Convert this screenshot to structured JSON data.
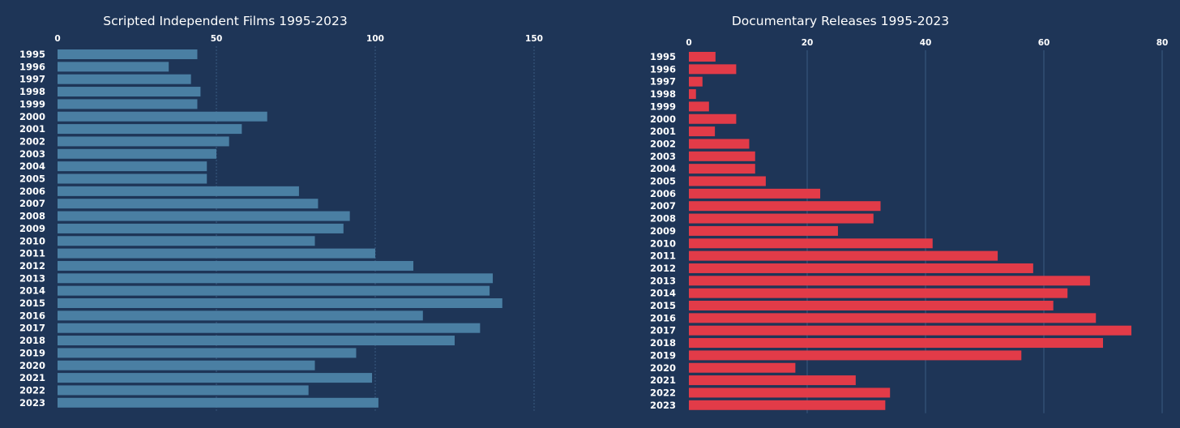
{
  "background": "#1e3557",
  "chart_data": [
    {
      "type": "bar",
      "orientation": "horizontal",
      "title": "Scripted Independent Films 1995-2023",
      "color": "#4a7fa3",
      "grid_color": "#3b5a80",
      "xlim": [
        0,
        150
      ],
      "ticks": [
        0,
        50,
        100,
        150
      ],
      "categories": [
        "1995",
        "1996",
        "1997",
        "1998",
        "1999",
        "2000",
        "2001",
        "2002",
        "2003",
        "2004",
        "2005",
        "2006",
        "2007",
        "2008",
        "2009",
        "2010",
        "2011",
        "2012",
        "2013",
        "2014",
        "2015",
        "2016",
        "2017",
        "2018",
        "2019",
        "2020",
        "2021",
        "2022",
        "2023"
      ],
      "values": [
        44,
        35,
        42,
        45,
        44,
        66,
        58,
        54,
        50,
        47,
        47,
        76,
        82,
        92,
        90,
        81,
        100,
        112,
        137,
        136,
        140,
        115,
        133,
        125,
        94,
        81,
        99,
        79,
        101
      ]
    },
    {
      "type": "bar",
      "orientation": "horizontal",
      "title": "Documentary Releases 1995-2023",
      "color": "#e23b48",
      "grid_color": "#3b5a80",
      "xlim": [
        0,
        80
      ],
      "ticks": [
        0,
        20,
        40,
        60,
        80
      ],
      "categories": [
        "1995",
        "1996",
        "1997",
        "1998",
        "1999",
        "2000",
        "2001",
        "2002",
        "2003",
        "2004",
        "2005",
        "2006",
        "2007",
        "2008",
        "2009",
        "2010",
        "2011",
        "2012",
        "2013",
        "2014",
        "2015",
        "2016",
        "2017",
        "2018",
        "2019",
        "2020",
        "2021",
        "2022",
        "2023"
      ],
      "values": [
        4.5,
        8,
        2.3,
        1.2,
        3.4,
        8,
        4.4,
        10.2,
        11.2,
        11.2,
        13,
        22.2,
        32.4,
        31.2,
        25.2,
        41.2,
        52.2,
        58.2,
        67.8,
        64,
        61.6,
        68.8,
        74.8,
        70,
        56.2,
        18,
        28.2,
        34,
        33.2
      ]
    }
  ]
}
